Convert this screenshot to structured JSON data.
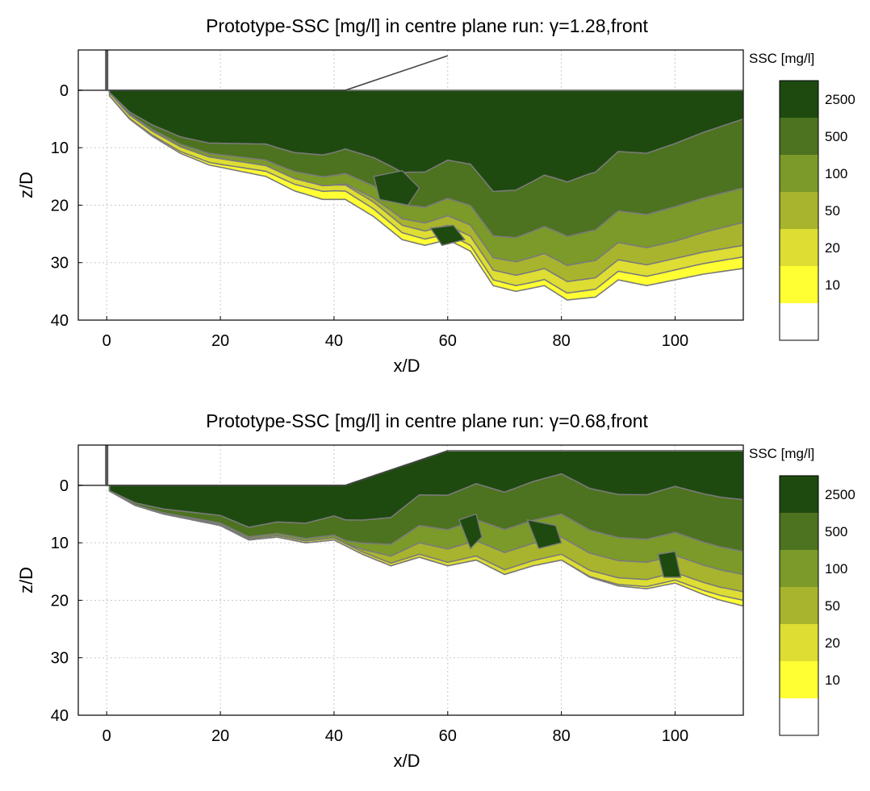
{
  "colors": {
    "levels": [
      "#ffffff",
      "#ffff33",
      "#dddd33",
      "#a8b42e",
      "#7b9a2a",
      "#4d7220",
      "#1e4a10"
    ],
    "contour_edge": "#7a7a7a",
    "grid": "#c8c8c8"
  },
  "chart_data": [
    {
      "type": "heatmap",
      "title": "Prototype-SSC [mg/l] in centre plane run: γ=1.28,front",
      "xlabel": "x/D",
      "ylabel": "z/D",
      "xlim": [
        -5,
        112
      ],
      "ylim": [
        40,
        -7
      ],
      "y_inverted": true,
      "grid": true,
      "xticks": [
        "0",
        "20",
        "40",
        "60",
        "80",
        "100"
      ],
      "yticks": [
        "0",
        "10",
        "20",
        "30",
        "40"
      ],
      "colorbar": {
        "title": "SSC [mg/l]",
        "labels": [
          "2500",
          "500",
          "100",
          "50",
          "20",
          "10"
        ]
      },
      "outer_boundary": [
        [
          0.5,
          1
        ],
        [
          4,
          5
        ],
        [
          8,
          8
        ],
        [
          13,
          11
        ],
        [
          18,
          13
        ],
        [
          23,
          14
        ],
        [
          28,
          15
        ],
        [
          33,
          17.5
        ],
        [
          38,
          19
        ],
        [
          42,
          19
        ],
        [
          47,
          22
        ],
        [
          52,
          26
        ],
        [
          56,
          27
        ],
        [
          60,
          26
        ],
        [
          64,
          28
        ],
        [
          68,
          34
        ],
        [
          72,
          35
        ],
        [
          77,
          34
        ],
        [
          81,
          36.5
        ],
        [
          86,
          36
        ],
        [
          90,
          33
        ],
        [
          95,
          34
        ],
        [
          100,
          33
        ],
        [
          105,
          32
        ],
        [
          112,
          31
        ]
      ],
      "class_bands": [
        {
          "level": 6,
          "thickness": [
            [
              0,
              2
            ],
            [
              10,
              6
            ],
            [
              25,
              6
            ],
            [
              40,
              6
            ],
            [
              55,
              3
            ],
            [
              80,
              1
            ],
            [
              112,
              0
            ]
          ]
        },
        {
          "level": 5,
          "thickness": [
            [
              0,
              0
            ],
            [
              20,
              2
            ],
            [
              40,
              4
            ],
            [
              55,
              6
            ],
            [
              70,
              8
            ],
            [
              85,
              10
            ],
            [
              100,
              11
            ],
            [
              112,
              12
            ]
          ]
        },
        {
          "level": 4,
          "thickness": [
            [
              0,
              0
            ],
            [
              30,
              1
            ],
            [
              45,
              2
            ],
            [
              60,
              3
            ],
            [
              80,
              5
            ],
            [
              100,
              6
            ],
            [
              112,
              6
            ]
          ]
        },
        {
          "level": 3,
          "thickness": [
            [
              0,
              0
            ],
            [
              40,
              0
            ],
            [
              50,
              1
            ],
            [
              65,
              2
            ],
            [
              85,
              3
            ],
            [
              100,
              3
            ],
            [
              112,
              4
            ]
          ]
        },
        {
          "level": 2,
          "thickness": [
            [
              0,
              0.5
            ],
            [
              20,
              1
            ],
            [
              40,
              1
            ],
            [
              60,
              1.5
            ],
            [
              80,
              2
            ],
            [
              100,
              2
            ],
            [
              112,
              2
            ]
          ]
        },
        {
          "level": 1,
          "thickness": [
            [
              0,
              0
            ],
            [
              20,
              0.5
            ],
            [
              40,
              1.5
            ],
            [
              60,
              1
            ],
            [
              75,
              1
            ],
            [
              90,
              1.5
            ],
            [
              112,
              2
            ]
          ]
        }
      ],
      "core_patches": [
        {
          "level": 6,
          "points": [
            [
              47,
              15
            ],
            [
              52,
              14
            ],
            [
              55,
              17
            ],
            [
              53,
              20
            ],
            [
              48,
              19
            ]
          ]
        },
        {
          "level": 6,
          "points": [
            [
              57,
              24
            ],
            [
              61,
              23.5
            ],
            [
              63,
              26
            ],
            [
              59,
              27
            ]
          ]
        }
      ],
      "structure": [
        [
          0,
          -7
        ],
        [
          0,
          0
        ],
        [
          -5,
          0
        ],
        [
          42,
          0
        ],
        [
          60,
          -6
        ]
      ]
    },
    {
      "type": "heatmap",
      "title": "Prototype-SSC [mg/l] in centre plane run: γ=0.68,front",
      "xlabel": "x/D",
      "ylabel": "z/D",
      "xlim": [
        -5,
        112
      ],
      "ylim": [
        40,
        -7
      ],
      "y_inverted": true,
      "grid": true,
      "xticks": [
        "0",
        "20",
        "40",
        "60",
        "80",
        "100"
      ],
      "yticks": [
        "0",
        "10",
        "20",
        "30",
        "40"
      ],
      "colorbar": {
        "title": "SSC [mg/l]",
        "labels": [
          "2500",
          "500",
          "100",
          "50",
          "20",
          "10"
        ]
      },
      "outer_boundary": [
        [
          0.5,
          1
        ],
        [
          5,
          3.5
        ],
        [
          10,
          5
        ],
        [
          15,
          6
        ],
        [
          20,
          7
        ],
        [
          25,
          9.5
        ],
        [
          30,
          9
        ],
        [
          35,
          10
        ],
        [
          40,
          9.5
        ],
        [
          45,
          12
        ],
        [
          50,
          14
        ],
        [
          55,
          12.5
        ],
        [
          60,
          14
        ],
        [
          65,
          13
        ],
        [
          70,
          15.5
        ],
        [
          75,
          14
        ],
        [
          80,
          13
        ],
        [
          85,
          16
        ],
        [
          90,
          17.5
        ],
        [
          95,
          18
        ],
        [
          100,
          17
        ],
        [
          105,
          19
        ],
        [
          108,
          20
        ],
        [
          112,
          21
        ]
      ],
      "top_boundary": [
        [
          -5,
          0
        ],
        [
          42,
          0
        ],
        [
          60,
          -6
        ],
        [
          112,
          -6
        ]
      ],
      "class_bands": [
        {
          "level": 6,
          "thickness": [
            [
              0,
              2
            ],
            [
              15,
              4
            ],
            [
              30,
              5
            ],
            [
              45,
              6
            ],
            [
              60,
              5
            ],
            [
              75,
              4
            ],
            [
              90,
              3
            ],
            [
              112,
              2
            ]
          ]
        },
        {
          "level": 5,
          "thickness": [
            [
              0,
              0
            ],
            [
              30,
              2
            ],
            [
              45,
              4
            ],
            [
              60,
              6
            ],
            [
              80,
              7
            ],
            [
              100,
              8
            ],
            [
              112,
              9
            ]
          ]
        },
        {
          "level": 4,
          "thickness": [
            [
              0,
              0
            ],
            [
              42,
              0.5
            ],
            [
              55,
              3
            ],
            [
              70,
              4
            ],
            [
              90,
              4
            ],
            [
              112,
              4
            ]
          ]
        },
        {
          "level": 3,
          "thickness": [
            [
              0,
              0
            ],
            [
              42,
              0
            ],
            [
              55,
              2
            ],
            [
              70,
              3
            ],
            [
              90,
              3
            ],
            [
              112,
              3
            ]
          ]
        },
        {
          "level": 2,
          "thickness": [
            [
              0,
              0
            ],
            [
              55,
              0.5
            ],
            [
              80,
              1
            ],
            [
              112,
              1.5
            ]
          ]
        },
        {
          "level": 1,
          "thickness": [
            [
              0,
              0
            ],
            [
              80,
              0
            ],
            [
              100,
              0.5
            ],
            [
              112,
              1
            ]
          ]
        }
      ],
      "core_patches": [
        {
          "level": 6,
          "points": [
            [
              62,
              6
            ],
            [
              65,
              5
            ],
            [
              66,
              9
            ],
            [
              64,
              11
            ]
          ]
        },
        {
          "level": 6,
          "points": [
            [
              74,
              6
            ],
            [
              79,
              7
            ],
            [
              80,
              10
            ],
            [
              76,
              11
            ]
          ]
        },
        {
          "level": 6,
          "points": [
            [
              97,
              12
            ],
            [
              100,
              11.5
            ],
            [
              101,
              16
            ],
            [
              98,
              16
            ]
          ]
        }
      ],
      "structure": [
        [
          0,
          -7
        ],
        [
          0,
          0
        ],
        [
          -5,
          0
        ],
        [
          42,
          0
        ],
        [
          60,
          -6
        ]
      ]
    }
  ]
}
